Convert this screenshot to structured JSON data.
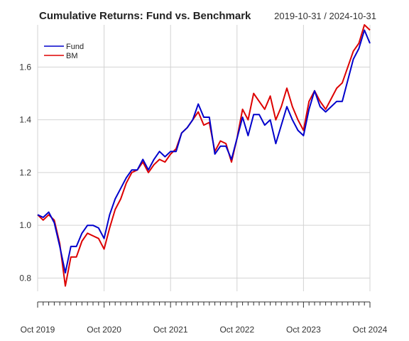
{
  "chart_data": {
    "type": "line",
    "title": "Cumulative Returns: Fund vs. Benchmark",
    "date_range": "2019-10-31 / 2024-10-31",
    "xlabel": "",
    "ylabel": "",
    "x_start": "2019-10",
    "x_end": "2024-10",
    "xlim": [
      "2019-10",
      "2024-10"
    ],
    "ylim": [
      0.75,
      1.76
    ],
    "yticks": [
      "0.8",
      "1.0",
      "1.2",
      "1.4",
      "1.6"
    ],
    "xticks": [
      "Oct 2019",
      "Oct 2020",
      "Oct 2021",
      "Oct 2022",
      "Oct 2023",
      "Oct 2024"
    ],
    "grid": true,
    "legend_position": "top-left",
    "x": [
      "2019-10",
      "2019-11",
      "2019-12",
      "2020-01",
      "2020-02",
      "2020-03",
      "2020-04",
      "2020-05",
      "2020-06",
      "2020-07",
      "2020-08",
      "2020-09",
      "2020-10",
      "2020-11",
      "2020-12",
      "2021-01",
      "2021-02",
      "2021-03",
      "2021-04",
      "2021-05",
      "2021-06",
      "2021-07",
      "2021-08",
      "2021-09",
      "2021-10",
      "2021-11",
      "2021-12",
      "2022-01",
      "2022-02",
      "2022-03",
      "2022-04",
      "2022-05",
      "2022-06",
      "2022-07",
      "2022-08",
      "2022-09",
      "2022-10",
      "2022-11",
      "2022-12",
      "2023-01",
      "2023-02",
      "2023-03",
      "2023-04",
      "2023-05",
      "2023-06",
      "2023-07",
      "2023-08",
      "2023-09",
      "2023-10",
      "2023-11",
      "2023-12",
      "2024-01",
      "2024-02",
      "2024-03",
      "2024-04",
      "2024-05",
      "2024-06",
      "2024-07",
      "2024-08",
      "2024-09",
      "2024-10"
    ],
    "series": [
      {
        "name": "Fund",
        "color": "#0000cc",
        "values": [
          1.04,
          1.03,
          1.05,
          1.01,
          0.92,
          0.82,
          0.92,
          0.92,
          0.97,
          1.0,
          1.0,
          0.99,
          0.95,
          1.04,
          1.1,
          1.14,
          1.18,
          1.21,
          1.21,
          1.25,
          1.21,
          1.25,
          1.28,
          1.26,
          1.28,
          1.28,
          1.35,
          1.37,
          1.4,
          1.46,
          1.41,
          1.41,
          1.27,
          1.3,
          1.3,
          1.25,
          1.33,
          1.41,
          1.34,
          1.42,
          1.42,
          1.38,
          1.4,
          1.31,
          1.38,
          1.45,
          1.4,
          1.36,
          1.34,
          1.44,
          1.51,
          1.45,
          1.43,
          1.45,
          1.47,
          1.47,
          1.55,
          1.63,
          1.67,
          1.74,
          1.69
        ]
      },
      {
        "name": "BM",
        "color": "#dd0000",
        "values": [
          1.04,
          1.02,
          1.04,
          1.02,
          0.93,
          0.77,
          0.88,
          0.88,
          0.94,
          0.97,
          0.96,
          0.95,
          0.91,
          0.99,
          1.06,
          1.1,
          1.16,
          1.2,
          1.21,
          1.24,
          1.2,
          1.23,
          1.25,
          1.24,
          1.27,
          1.29,
          1.35,
          1.37,
          1.4,
          1.43,
          1.38,
          1.39,
          1.28,
          1.32,
          1.31,
          1.24,
          1.33,
          1.44,
          1.4,
          1.5,
          1.47,
          1.44,
          1.49,
          1.4,
          1.45,
          1.52,
          1.45,
          1.4,
          1.36,
          1.47,
          1.51,
          1.47,
          1.44,
          1.48,
          1.52,
          1.54,
          1.6,
          1.66,
          1.69,
          1.76,
          1.74
        ]
      }
    ]
  }
}
